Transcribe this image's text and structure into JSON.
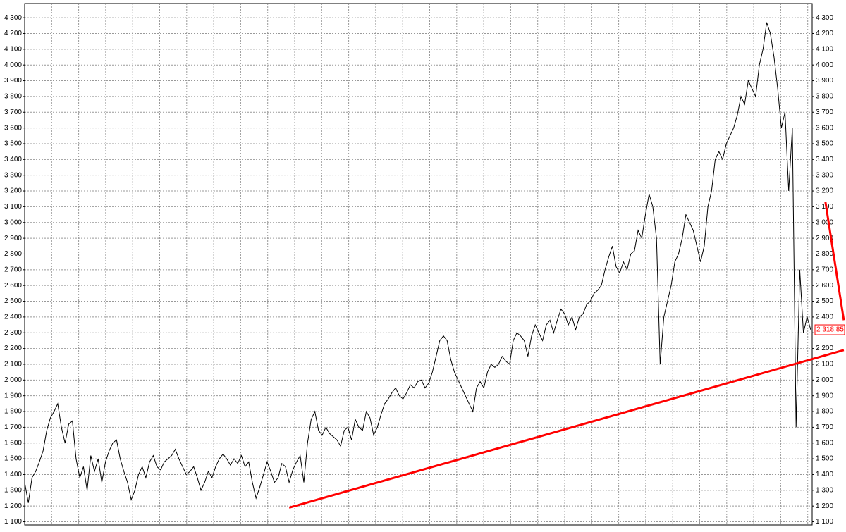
{
  "chart_data": {
    "type": "line",
    "values": [
      1350,
      1220,
      1380,
      1420,
      1480,
      1550,
      1680,
      1760,
      1800,
      1850,
      1700,
      1600,
      1720,
      1740,
      1500,
      1380,
      1450,
      1300,
      1520,
      1420,
      1500,
      1350,
      1480,
      1550,
      1600,
      1620,
      1500,
      1420,
      1350,
      1240,
      1300,
      1400,
      1450,
      1380,
      1480,
      1520,
      1450,
      1430,
      1480,
      1500,
      1520,
      1560,
      1500,
      1450,
      1400,
      1420,
      1450,
      1380,
      1300,
      1350,
      1420,
      1380,
      1450,
      1500,
      1530,
      1500,
      1460,
      1500,
      1470,
      1520,
      1450,
      1480,
      1350,
      1250,
      1320,
      1400,
      1480,
      1420,
      1350,
      1380,
      1470,
      1450,
      1350,
      1430,
      1480,
      1520,
      1350,
      1600,
      1750,
      1800,
      1680,
      1650,
      1700,
      1660,
      1640,
      1620,
      1580,
      1680,
      1700,
      1620,
      1750,
      1700,
      1680,
      1800,
      1760,
      1650,
      1700,
      1780,
      1850,
      1880,
      1920,
      1950,
      1900,
      1880,
      1920,
      1970,
      1950,
      1990,
      2000,
      1950,
      1980,
      2050,
      2150,
      2250,
      2280,
      2250,
      2130,
      2050,
      2000,
      1950,
      1900,
      1850,
      1800,
      1950,
      1990,
      1950,
      2050,
      2100,
      2080,
      2100,
      2150,
      2120,
      2100,
      2250,
      2300,
      2280,
      2250,
      2150,
      2280,
      2350,
      2300,
      2250,
      2350,
      2380,
      2300,
      2380,
      2450,
      2420,
      2350,
      2400,
      2320,
      2400,
      2420,
      2480,
      2500,
      2550,
      2570,
      2600,
      2700,
      2780,
      2850,
      2720,
      2680,
      2750,
      2700,
      2800,
      2820,
      2950,
      2900,
      3050,
      3180,
      3100,
      2900,
      2100,
      2400,
      2500,
      2600,
      2750,
      2800,
      2900,
      3050,
      3000,
      2950,
      2850,
      2750,
      2850,
      3100,
      3200,
      3400,
      3450,
      3400,
      3500,
      3550,
      3600,
      3680,
      3800,
      3750,
      3900,
      3850,
      3800,
      4000,
      4100,
      4270,
      4200,
      4050,
      3850,
      3600,
      3700,
      3200,
      3600,
      1700,
      2700,
      2300,
      2400,
      2318.85
    ],
    "color": "#000000",
    "last_value": {
      "value": 2318.85,
      "label": "2 318,85"
    },
    "trendlines": [
      {
        "color": "#ff0000",
        "from": [
          72,
          1190
        ],
        "to": [
          223,
          2190
        ]
      },
      {
        "color": "#ff0000",
        "from": [
          218,
          3130
        ],
        "to": [
          223,
          2380
        ]
      }
    ],
    "ylim": [
      1080,
      4390
    ],
    "yticks": [
      {
        "value": 1100,
        "label": "1 100"
      },
      {
        "value": 1200,
        "label": "1 200"
      },
      {
        "value": 1300,
        "label": "1 300"
      },
      {
        "value": 1400,
        "label": "1 400"
      },
      {
        "value": 1500,
        "label": "1 500"
      },
      {
        "value": 1600,
        "label": "1 600"
      },
      {
        "value": 1700,
        "label": "1 700"
      },
      {
        "value": 1800,
        "label": "1 800"
      },
      {
        "value": 1900,
        "label": "1 900"
      },
      {
        "value": 2000,
        "label": "2 000"
      },
      {
        "value": 2100,
        "label": "2 100"
      },
      {
        "value": 2200,
        "label": "2 200"
      },
      {
        "value": 2300,
        "label": "2 300"
      },
      {
        "value": 2400,
        "label": "2 400"
      },
      {
        "value": 2500,
        "label": "2 500"
      },
      {
        "value": 2600,
        "label": "2 600"
      },
      {
        "value": 2700,
        "label": "2 700"
      },
      {
        "value": 2800,
        "label": "2 800"
      },
      {
        "value": 2900,
        "label": "2 900"
      },
      {
        "value": 3000,
        "label": "3 000"
      },
      {
        "value": 3100,
        "label": "3 100"
      },
      {
        "value": 3200,
        "label": "3 200"
      },
      {
        "value": 3300,
        "label": "3 300"
      },
      {
        "value": 3400,
        "label": "3 400"
      },
      {
        "value": 3500,
        "label": "3 500"
      },
      {
        "value": 3600,
        "label": "3 600"
      },
      {
        "value": 3700,
        "label": "3 700"
      },
      {
        "value": 3800,
        "label": "3 800"
      },
      {
        "value": 3900,
        "label": "3 900"
      },
      {
        "value": 4000,
        "label": "4 000"
      },
      {
        "value": 4100,
        "label": "4 100"
      },
      {
        "value": 4200,
        "label": "4 200"
      },
      {
        "value": 4300,
        "label": "4 300"
      }
    ],
    "grid": true
  }
}
